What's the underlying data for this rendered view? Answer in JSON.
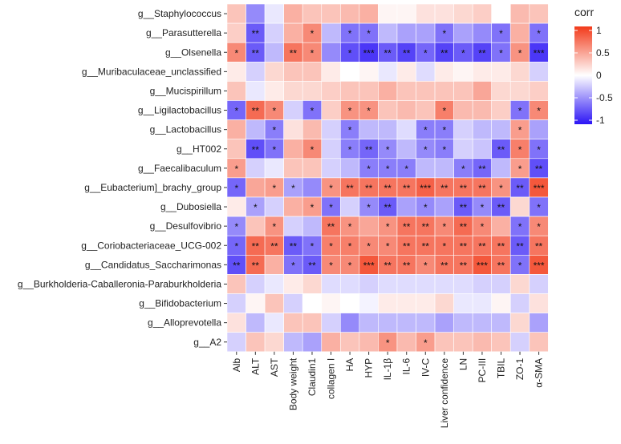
{
  "chart_data": {
    "type": "heatmap",
    "title": "",
    "xlabel": "",
    "ylabel": "",
    "rows": [
      "g__Staphylococcus",
      "g__Parasutterella",
      "g__Olsenella",
      "g__Muribaculaceae_unclassified",
      "g__Mucispirillum",
      "g__Ligilactobacillus",
      "g__Lactobacillus",
      "g__HT002",
      "g__Faecalibaculum",
      "g__Eubacterium]_brachy_group",
      "g__Dubosiella",
      "g__Desulfovibrio",
      "g__Coriobacteriaceae_UCG-002",
      "g__Candidatus_Saccharimonas",
      "g__Burkholderia-Caballeronia-Paraburkholderia",
      "g__Bifidobacterium",
      "g__Alloprevotella",
      "g__A2"
    ],
    "columns": [
      "Alb",
      "ALT",
      "AST",
      "Body weight",
      "Claudin1",
      "collagen I",
      "HA",
      "HYP",
      "IL-1β",
      "IL-6",
      "IV-C",
      "Liver confidence",
      "LN",
      "PC-III",
      "TBIL",
      "ZO-1",
      "α-SMA"
    ],
    "values": [
      [
        0.3,
        -0.5,
        -0.1,
        0.4,
        0.3,
        0.3,
        0.35,
        0.4,
        0.05,
        0.05,
        0.15,
        0.15,
        0.2,
        0.25,
        0.0,
        0.35,
        0.3
      ],
      [
        0.25,
        -0.7,
        -0.2,
        0.4,
        0.6,
        -0.3,
        -0.6,
        -0.6,
        -0.3,
        -0.4,
        -0.4,
        -0.6,
        -0.4,
        -0.5,
        -0.6,
        0.4,
        -0.6
      ],
      [
        0.6,
        -0.7,
        -0.3,
        0.7,
        0.6,
        -0.5,
        -0.75,
        -0.85,
        -0.7,
        -0.8,
        -0.65,
        -0.8,
        -0.7,
        -0.8,
        -0.6,
        0.55,
        -0.85
      ],
      [
        0.1,
        -0.2,
        0.2,
        0.3,
        0.3,
        0.1,
        0.0,
        0.05,
        -0.1,
        0.1,
        -0.15,
        0.1,
        0.05,
        0.1,
        0.1,
        0.2,
        -0.2
      ],
      [
        0.3,
        -0.1,
        0.1,
        0.2,
        0.2,
        0.25,
        0.3,
        0.3,
        0.4,
        0.3,
        0.3,
        0.3,
        0.3,
        0.45,
        0.2,
        0.2,
        0.25
      ],
      [
        -0.65,
        0.75,
        0.6,
        -0.2,
        -0.6,
        0.25,
        0.55,
        0.55,
        0.3,
        0.35,
        0.3,
        0.65,
        0.35,
        0.35,
        0.25,
        -0.6,
        0.6
      ],
      [
        0.4,
        -0.3,
        -0.55,
        0.15,
        0.35,
        -0.2,
        -0.55,
        -0.3,
        -0.3,
        -0.15,
        -0.55,
        -0.55,
        -0.2,
        -0.3,
        -0.3,
        0.5,
        -0.4
      ],
      [
        0.3,
        -0.75,
        -0.6,
        0.4,
        0.6,
        -0.2,
        -0.55,
        -0.65,
        -0.5,
        -0.3,
        -0.5,
        -0.55,
        -0.2,
        -0.25,
        -0.7,
        0.65,
        -0.6
      ],
      [
        0.5,
        -0.2,
        -0.1,
        0.3,
        0.3,
        -0.2,
        -0.3,
        -0.55,
        -0.55,
        -0.55,
        -0.3,
        -0.3,
        -0.55,
        -0.65,
        -0.3,
        0.5,
        -0.75
      ],
      [
        -0.65,
        0.45,
        0.5,
        -0.4,
        -0.5,
        0.55,
        0.7,
        0.7,
        0.7,
        0.7,
        0.8,
        0.7,
        0.7,
        0.7,
        0.55,
        -0.7,
        0.85
      ],
      [
        0.1,
        -0.4,
        -0.2,
        0.4,
        0.5,
        -0.6,
        -0.2,
        -0.5,
        -0.7,
        -0.4,
        -0.5,
        -0.4,
        -0.7,
        -0.5,
        -0.7,
        0.2,
        -0.6
      ],
      [
        -0.5,
        0.3,
        0.55,
        -0.2,
        -0.3,
        0.7,
        0.55,
        0.45,
        0.55,
        0.7,
        0.7,
        0.6,
        0.75,
        0.6,
        0.4,
        -0.6,
        0.6
      ],
      [
        -0.65,
        0.75,
        0.7,
        -0.7,
        -0.6,
        0.65,
        0.65,
        0.6,
        0.6,
        0.7,
        0.7,
        0.7,
        0.7,
        0.7,
        0.7,
        -0.7,
        0.7
      ],
      [
        -0.75,
        0.75,
        0.4,
        -0.6,
        -0.7,
        0.6,
        0.6,
        0.85,
        0.7,
        0.7,
        0.6,
        0.7,
        0.7,
        0.85,
        0.7,
        -0.6,
        0.85
      ],
      [
        0.3,
        -0.2,
        -0.1,
        0.1,
        0.2,
        -0.15,
        -0.15,
        -0.2,
        -0.15,
        -0.15,
        -0.15,
        -0.15,
        -0.15,
        -0.2,
        -0.2,
        0.2,
        -0.2
      ],
      [
        -0.2,
        0.05,
        0.3,
        -0.2,
        0.0,
        0.05,
        0.0,
        -0.05,
        0.1,
        0.1,
        0.1,
        0.2,
        -0.1,
        -0.1,
        0.05,
        -0.2,
        0.15
      ],
      [
        0.15,
        -0.3,
        -0.1,
        0.3,
        0.3,
        -0.2,
        -0.5,
        -0.3,
        -0.3,
        -0.3,
        -0.3,
        -0.4,
        -0.3,
        -0.3,
        -0.3,
        0.2,
        -0.4
      ],
      [
        -0.2,
        0.3,
        0.2,
        -0.3,
        -0.4,
        0.4,
        0.3,
        0.35,
        0.55,
        0.35,
        0.5,
        0.3,
        0.3,
        0.35,
        0.3,
        -0.2,
        0.3
      ]
    ],
    "significance": [
      [
        "",
        "",
        "",
        "",
        "",
        "",
        "",
        "",
        "",
        "",
        "",
        "",
        "",
        "",
        "",
        "",
        ""
      ],
      [
        "",
        "**",
        "",
        "",
        "*",
        "",
        "*",
        "*",
        "",
        "",
        "",
        "*",
        "",
        "",
        "*",
        "",
        "*"
      ],
      [
        "*",
        "**",
        "",
        "**",
        "*",
        "",
        "*",
        "***",
        "**",
        "**",
        "*",
        "**",
        "*",
        "**",
        "*",
        "*",
        "***"
      ],
      [
        "",
        "",
        "",
        "",
        "",
        "",
        "",
        "",
        "",
        "",
        "",
        "",
        "",
        "",
        "",
        "",
        ""
      ],
      [
        "",
        "",
        "",
        "",
        "",
        "",
        "",
        "",
        "",
        "",
        "",
        "",
        "",
        "",
        "",
        "",
        ""
      ],
      [
        "*",
        "**",
        "*",
        "",
        "*",
        "",
        "*",
        "*",
        "",
        "",
        "",
        "*",
        "",
        "",
        "",
        "*",
        "*"
      ],
      [
        "",
        "",
        "*",
        "",
        "",
        "",
        "*",
        "",
        "",
        "",
        "*",
        "*",
        "",
        "",
        "",
        "*",
        ""
      ],
      [
        "",
        "**",
        "*",
        "",
        "*",
        "",
        "*",
        "**",
        "*",
        "",
        "*",
        "*",
        "",
        "",
        "**",
        "*",
        "*"
      ],
      [
        "*",
        "",
        "",
        "",
        "",
        "",
        "",
        "*",
        "*",
        "*",
        "",
        "",
        "*",
        "**",
        "",
        "*",
        "**"
      ],
      [
        "*",
        "",
        "*",
        "*",
        "",
        "*",
        "**",
        "**",
        "**",
        "**",
        "***",
        "**",
        "**",
        "**",
        "*",
        "**",
        "***"
      ],
      [
        "",
        "*",
        "",
        "",
        "*",
        "*",
        "",
        "*",
        "**",
        "",
        "*",
        "",
        "**",
        "*",
        "**",
        "",
        "*"
      ],
      [
        "*",
        "",
        "*",
        "",
        "",
        "**",
        "*",
        "",
        "*",
        "**",
        "**",
        "*",
        "**",
        "*",
        "",
        "*",
        "*"
      ],
      [
        "*",
        "**",
        "**",
        "**",
        "*",
        "*",
        "*",
        "*",
        "*",
        "**",
        "**",
        "*",
        "**",
        "**",
        "**",
        "**",
        "**"
      ],
      [
        "**",
        "**",
        "",
        "*",
        "**",
        "*",
        "*",
        "***",
        "**",
        "**",
        "*",
        "**",
        "**",
        "***",
        "**",
        "*",
        "***"
      ],
      [
        "",
        "",
        "",
        "",
        "",
        "",
        "",
        "",
        "",
        "",
        "",
        "",
        "",
        "",
        "",
        "",
        ""
      ],
      [
        "",
        "",
        "",
        "",
        "",
        "",
        "",
        "",
        "",
        "",
        "",
        "",
        "",
        "",
        "",
        "",
        ""
      ],
      [
        "",
        "",
        "",
        "",
        "",
        "",
        "",
        "",
        "",
        "",
        "",
        "",
        "",
        "",
        "",
        "",
        ""
      ],
      [
        "",
        "",
        "",
        "",
        "",
        "",
        "",
        "",
        "*",
        "",
        "*",
        "",
        "",
        "",
        "",
        "",
        ""
      ]
    ],
    "color_scale": {
      "title": "corr",
      "range": [
        -1,
        1
      ],
      "low_color": "#2b14f5",
      "mid_color": "#ffffff",
      "high_color": "#f23a1a",
      "ticks": [
        "1",
        "0.5",
        "0",
        "-0.5",
        "-1"
      ]
    }
  }
}
